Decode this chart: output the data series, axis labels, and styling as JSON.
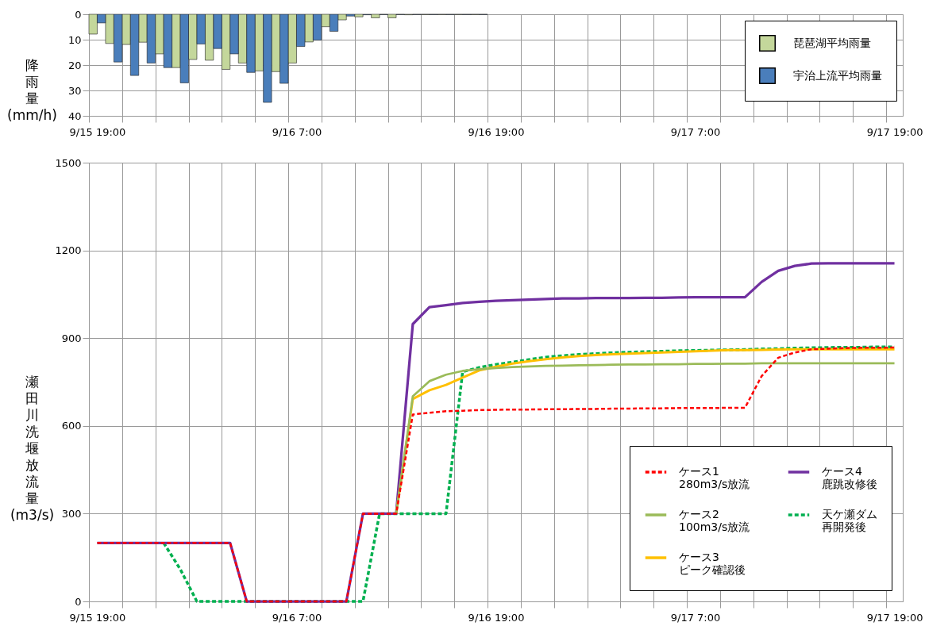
{
  "chart_data": [
    {
      "type": "bar",
      "ylabel": "降雨量 (mm/h)",
      "categories": [
        "9/15 19:00",
        null,
        null,
        null,
        null,
        null,
        null,
        null,
        null,
        null,
        null,
        null,
        "9/16 7:00",
        null,
        null,
        null,
        null,
        null,
        null,
        null,
        null,
        null,
        null,
        null,
        "9/16 19:00",
        null,
        null,
        null,
        null,
        null,
        null,
        null,
        null,
        null,
        null,
        null,
        "9/17 7:00",
        null,
        null,
        null,
        null,
        null,
        null,
        null,
        null,
        null,
        null,
        null,
        "9/17 19:00"
      ],
      "series": [
        {
          "name": "琵琶湖平均雨量",
          "color": "#c4d79b",
          "values": [
            7.8,
            11.5,
            11.9,
            11.0,
            15.6,
            21.0,
            17.8,
            18.1,
            21.7,
            19.2,
            22.3,
            22.6,
            19.2,
            10.9,
            4.9,
            2.2,
            1.0,
            1.4,
            1.4,
            0.2,
            0.1,
            0.1,
            0.1,
            0.1,
            null,
            null,
            null,
            null,
            null,
            null,
            null,
            null,
            null,
            null,
            null,
            null,
            null,
            null,
            null,
            null,
            null,
            null,
            null,
            null,
            null,
            null,
            null,
            null,
            null
          ]
        },
        {
          "name": "宇治上流平均雨量",
          "color": "#4a7ebb",
          "values": [
            3.4,
            18.8,
            24.1,
            19.2,
            21.0,
            27.0,
            11.7,
            13.5,
            15.6,
            22.9,
            34.7,
            27.2,
            12.7,
            10.2,
            6.7,
            0.7,
            0.2,
            0.1,
            0.1,
            0.1,
            0.1,
            0.1,
            0.1,
            0.1,
            null,
            null,
            null,
            null,
            null,
            null,
            null,
            null,
            null,
            null,
            null,
            null,
            null,
            null,
            null,
            null,
            null,
            null,
            null,
            null,
            null,
            null,
            null,
            null,
            null
          ]
        }
      ],
      "ylim": [
        40,
        0
      ],
      "yticks": [
        0,
        10,
        20,
        30,
        40
      ],
      "grid": true,
      "legend": "top right"
    },
    {
      "type": "line",
      "ylabel": "瀬田川洗堰放流量 (m3/s)",
      "categories": [
        "9/15 19:00",
        null,
        null,
        null,
        null,
        null,
        null,
        null,
        null,
        null,
        null,
        null,
        "9/16 7:00",
        null,
        null,
        null,
        null,
        null,
        null,
        null,
        null,
        null,
        null,
        null,
        "9/16 19:00",
        null,
        null,
        null,
        null,
        null,
        null,
        null,
        null,
        null,
        null,
        null,
        "9/17 7:00",
        null,
        null,
        null,
        null,
        null,
        null,
        null,
        null,
        null,
        null,
        null,
        "9/17 19:00"
      ],
      "series": [
        {
          "name": "ケース1 280m3/s放流",
          "color": "#ff0000",
          "line_style": "dashed",
          "values": [
            200,
            200,
            200,
            200,
            200,
            200,
            200,
            200,
            200,
            0,
            0,
            0,
            0,
            0,
            0,
            0,
            300,
            300,
            300,
            639,
            645,
            650,
            652,
            654,
            655,
            656,
            656,
            657,
            657,
            658,
            658,
            659,
            659,
            660,
            660,
            661,
            661,
            661,
            662,
            662,
            770,
            833,
            851,
            862,
            864,
            866,
            867,
            867,
            868
          ]
        },
        {
          "name": "ケース2 100m3/s放流",
          "color": "#9bbb59",
          "line_style": "solid",
          "values": [
            null,
            null,
            null,
            null,
            null,
            null,
            null,
            null,
            null,
            null,
            null,
            null,
            null,
            null,
            null,
            null,
            null,
            null,
            300,
            701,
            753,
            775,
            788,
            794,
            798,
            801,
            803,
            805,
            806,
            807,
            808,
            809,
            810,
            810,
            811,
            811,
            812,
            812,
            813,
            813,
            814,
            814,
            814,
            814,
            814,
            814,
            814,
            814,
            814
          ]
        },
        {
          "name": "ケース3 ピーク確認後",
          "color": "#ffc000",
          "line_style": "solid",
          "values": [
            null,
            null,
            null,
            null,
            null,
            null,
            null,
            null,
            null,
            null,
            null,
            null,
            null,
            null,
            null,
            null,
            null,
            null,
            300,
            692,
            722,
            740,
            765,
            790,
            802,
            813,
            821,
            828,
            834,
            839,
            842,
            845,
            847,
            849,
            851,
            853,
            855,
            857,
            859,
            859,
            860,
            861,
            862,
            862,
            862,
            862,
            862,
            862,
            862
          ]
        },
        {
          "name": "ケース4 鹿跳改修後",
          "color": "#7030a0",
          "line_style": "solid",
          "values": [
            200,
            200,
            200,
            200,
            200,
            200,
            200,
            200,
            200,
            0,
            0,
            0,
            0,
            0,
            0,
            0,
            300,
            300,
            300,
            948,
            1006,
            1013,
            1020,
            1024,
            1028,
            1030,
            1032,
            1034,
            1036,
            1036,
            1037,
            1037,
            1037,
            1038,
            1038,
            1039,
            1040,
            1040,
            1040,
            1040,
            1092,
            1130,
            1147,
            1155,
            1156,
            1156,
            1156,
            1156,
            1156
          ]
        },
        {
          "name": "天ケ瀬ダム再開発後",
          "color": "#00b050",
          "line_style": "dashed",
          "values": [
            null,
            null,
            null,
            null,
            200,
            110,
            0,
            0,
            0,
            0,
            0,
            0,
            0,
            0,
            0,
            0,
            0,
            300,
            300,
            300,
            300,
            300,
            785,
            800,
            810,
            818,
            827,
            835,
            840,
            844,
            847,
            850,
            852,
            854,
            855,
            857,
            858,
            859,
            860,
            861,
            863,
            864,
            866,
            867,
            868,
            869,
            869,
            870,
            870
          ]
        }
      ],
      "ylim": [
        0,
        1500
      ],
      "yticks": [
        0,
        300,
        600,
        900,
        1200,
        1500
      ],
      "grid": true,
      "legend": "bottom right"
    }
  ]
}
